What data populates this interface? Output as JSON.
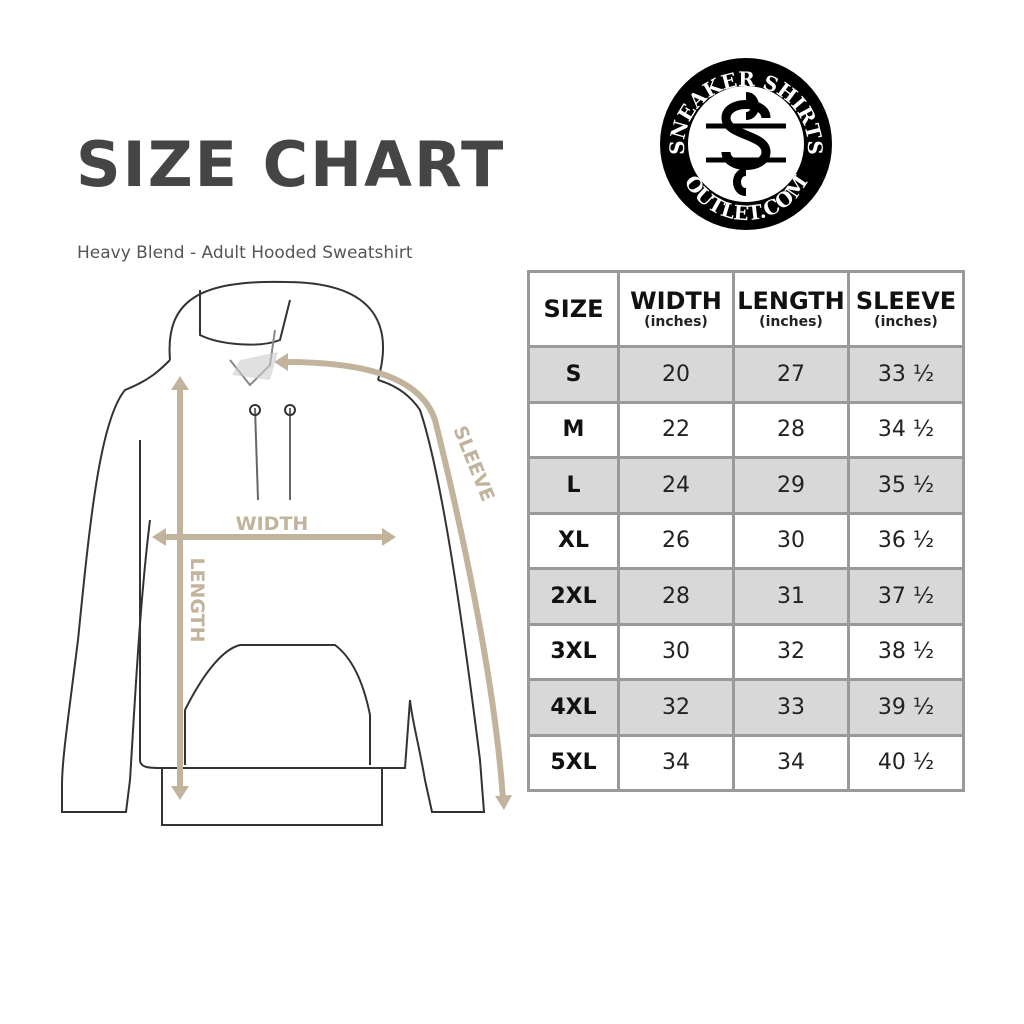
{
  "title": "SIZE CHART",
  "subtitle": "Heavy Blend - Adult Hooded Sweatshirt",
  "logo": {
    "top_text": "SNEAKER SHIRTS",
    "bottom_text": "OUTLET.COM",
    "monogram": "SS"
  },
  "diagram": {
    "width_label": "WIDTH",
    "length_label": "LENGTH",
    "sleeve_label": "SLEEVE",
    "annotation_color": "#c2b49c"
  },
  "table": {
    "headers": [
      {
        "label": "SIZE",
        "unit": ""
      },
      {
        "label": "WIDTH",
        "unit": "(inches)"
      },
      {
        "label": "LENGTH",
        "unit": "(inches)"
      },
      {
        "label": "SLEEVE",
        "unit": "(inches)"
      }
    ],
    "rows": [
      [
        "S",
        "20",
        "27",
        "33 ½"
      ],
      [
        "M",
        "22",
        "28",
        "34 ½"
      ],
      [
        "L",
        "24",
        "29",
        "35 ½"
      ],
      [
        "XL",
        "26",
        "30",
        "36 ½"
      ],
      [
        "2XL",
        "28",
        "31",
        "37 ½"
      ],
      [
        "3XL",
        "30",
        "32",
        "38 ½"
      ],
      [
        "4XL",
        "32",
        "33",
        "39 ½"
      ],
      [
        "5XL",
        "34",
        "34",
        "40 ½"
      ]
    ],
    "shade_color": "#d8d8d8"
  }
}
